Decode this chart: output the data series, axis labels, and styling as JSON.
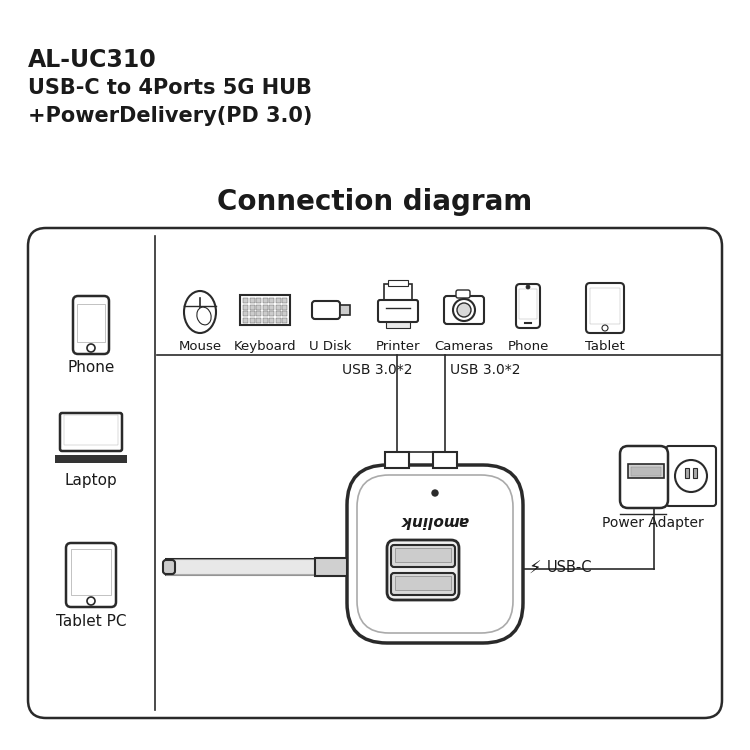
{
  "bg_color": "#ffffff",
  "title_line1": "AL-UC310",
  "title_line2": "USB-C to 4Ports 5G HUB",
  "title_line3": "+PowerDelivery(PD 3.0)",
  "subtitle": "Connection diagram",
  "top_devices": [
    "Mouse",
    "Keyboard",
    "U Disk",
    "Printer",
    "Cameras",
    "Phone",
    "Tablet"
  ],
  "left_devices": [
    "Phone",
    "Laptop",
    "Tablet PC"
  ],
  "label_usb1": "USB 3.0*2",
  "label_usb2": "USB 3.0*2",
  "label_usbc": "USB-C",
  "label_power": "Power Adapter",
  "label_brand": "amolink",
  "line_color": "#2a2a2a",
  "text_color": "#1a1a1a",
  "gray_fill": "#e0e0e0",
  "light_gray": "#f0f0f0"
}
